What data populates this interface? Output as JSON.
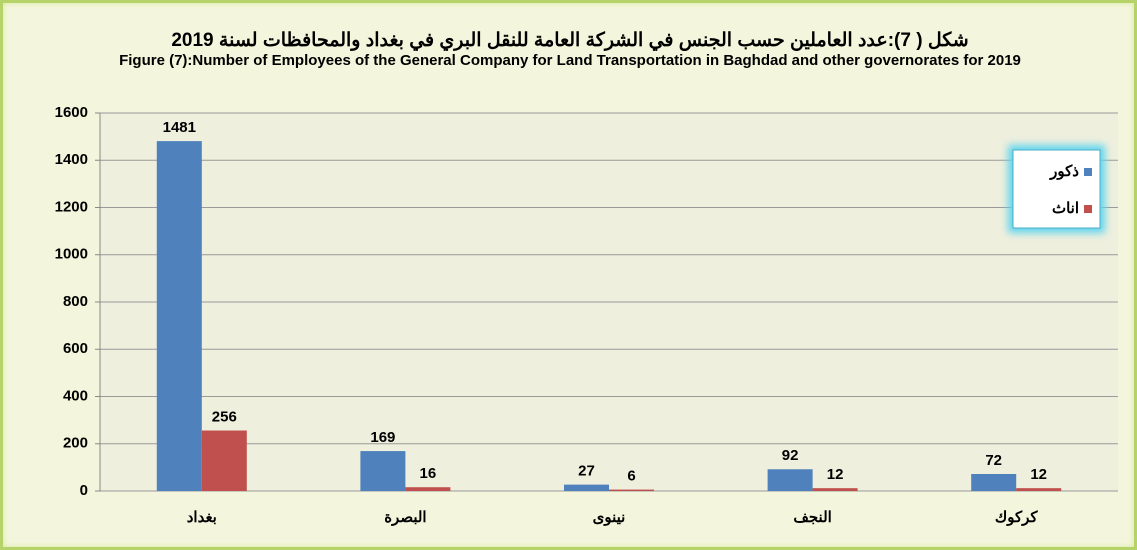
{
  "chart_data": {
    "type": "bar",
    "title": "شكل ( 7):عدد العاملين حسب الجنس في الشركة العامة للنقل البري في بغداد والمحافظات لسنة 2019",
    "subtitle": "Figure (7):Number of Employees of the General Company for Land Transportation in Baghdad and other governorates for 2019",
    "categories": [
      "بغداد",
      "البصرة",
      "نينوى",
      "النجف",
      "كركوك"
    ],
    "series": [
      {
        "name": "ذكور",
        "color": "#4f81bd",
        "values": [
          1481,
          169,
          27,
          92,
          72
        ]
      },
      {
        "name": "اناث",
        "color": "#c0504d",
        "values": [
          256,
          16,
          6,
          12,
          12
        ]
      }
    ],
    "ylim": [
      0,
      1600
    ],
    "yticks": [
      0,
      200,
      400,
      600,
      800,
      1000,
      1200,
      1400,
      1600
    ],
    "grid": true
  }
}
